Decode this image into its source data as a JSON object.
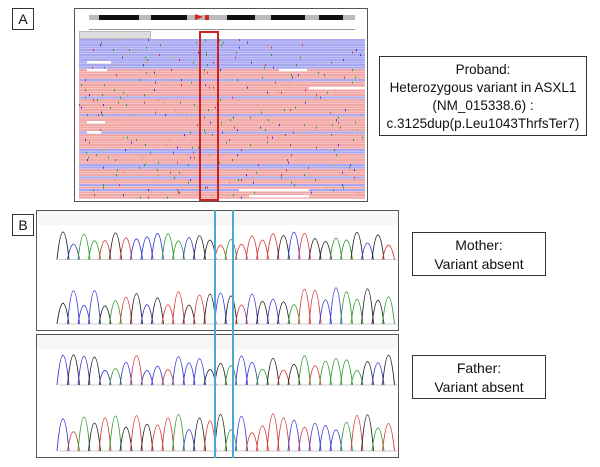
{
  "panels": {
    "a_label": "A",
    "b_label": "B"
  },
  "proband": {
    "line1": "Proband:",
    "line2": "Heterozygous variant in ASXL1",
    "line3": "(NM_015338.6) :",
    "line4": "c.3125dup(p.Leu1043ThrfsTer7)"
  },
  "mother": {
    "line1": "Mother:",
    "line2": "Variant absent"
  },
  "father": {
    "line1": "Father:",
    "line2": "Variant absent"
  },
  "colors": {
    "forward_read": "#f2a7a7",
    "reverse_read": "#a7a7f2",
    "highlight_box": "#cc2222",
    "variant_line": "#4aa8d8",
    "trace_a": "#2e9e2e",
    "trace_c": "#3a3ad6",
    "trace_g": "#222222",
    "trace_t": "#d63a3a"
  }
}
